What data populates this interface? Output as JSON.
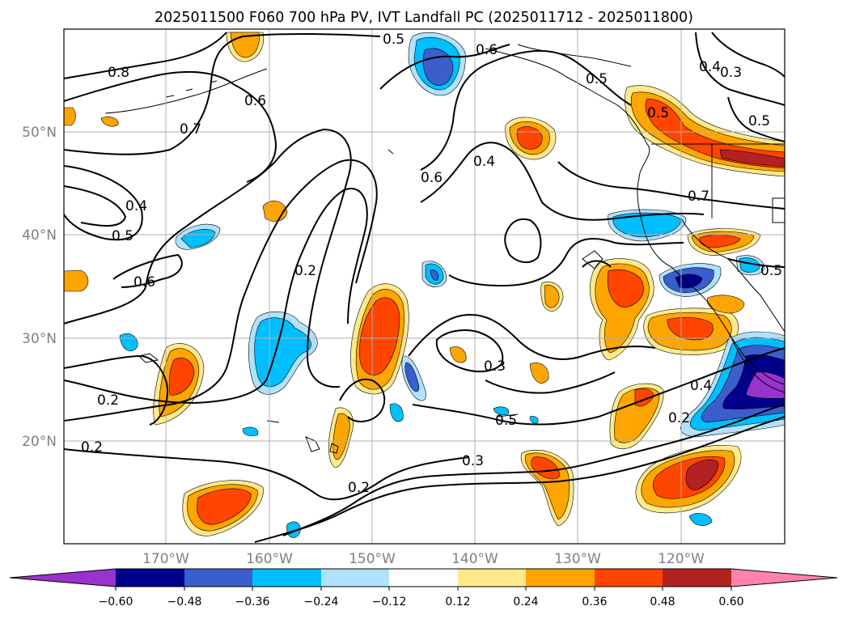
{
  "title": "2025011500 F060 700 hPa PV, IVT Landfall PC (2025011712 - 2025011800)",
  "axes": {
    "lat_labels": [
      "50°N",
      "40°N",
      "30°N",
      "20°N"
    ],
    "lon_labels": [
      "170°W",
      "160°W",
      "150°W",
      "140°W",
      "130°W",
      "120°W"
    ],
    "grid": true
  },
  "contour_labels": [
    "0.5",
    "0.8",
    "0.6",
    "0.7",
    "0.4",
    "0.5",
    "0.6",
    "0.2",
    "0.6",
    "0.4",
    "0.5",
    "0.6",
    "0.5",
    "0.4",
    "0.3",
    "0.5",
    "0.7",
    "0.5",
    "0.2",
    "0.2",
    "0.3",
    "0.5",
    "0.2",
    "0.3",
    "0.2",
    "0.4"
  ],
  "colorbar": {
    "ticks": [
      "−0.60",
      "−0.48",
      "−0.36",
      "−0.24",
      "−0.12",
      "0.12",
      "0.24",
      "0.36",
      "0.48",
      "0.60"
    ],
    "colors": {
      "below": "#9a32cd",
      "neg_060_048": "#00008b",
      "neg_048_036": "#3a5fcd",
      "neg_036_024": "#00bfff",
      "neg_024_012": "#b0e2ff",
      "neutral": "#ffffff",
      "pos_012_024": "#ffe98a",
      "pos_024_036": "#ffa500",
      "pos_036_048": "#ff4500",
      "pos_048_060": "#b22222",
      "above": "#ff82ab"
    }
  }
}
